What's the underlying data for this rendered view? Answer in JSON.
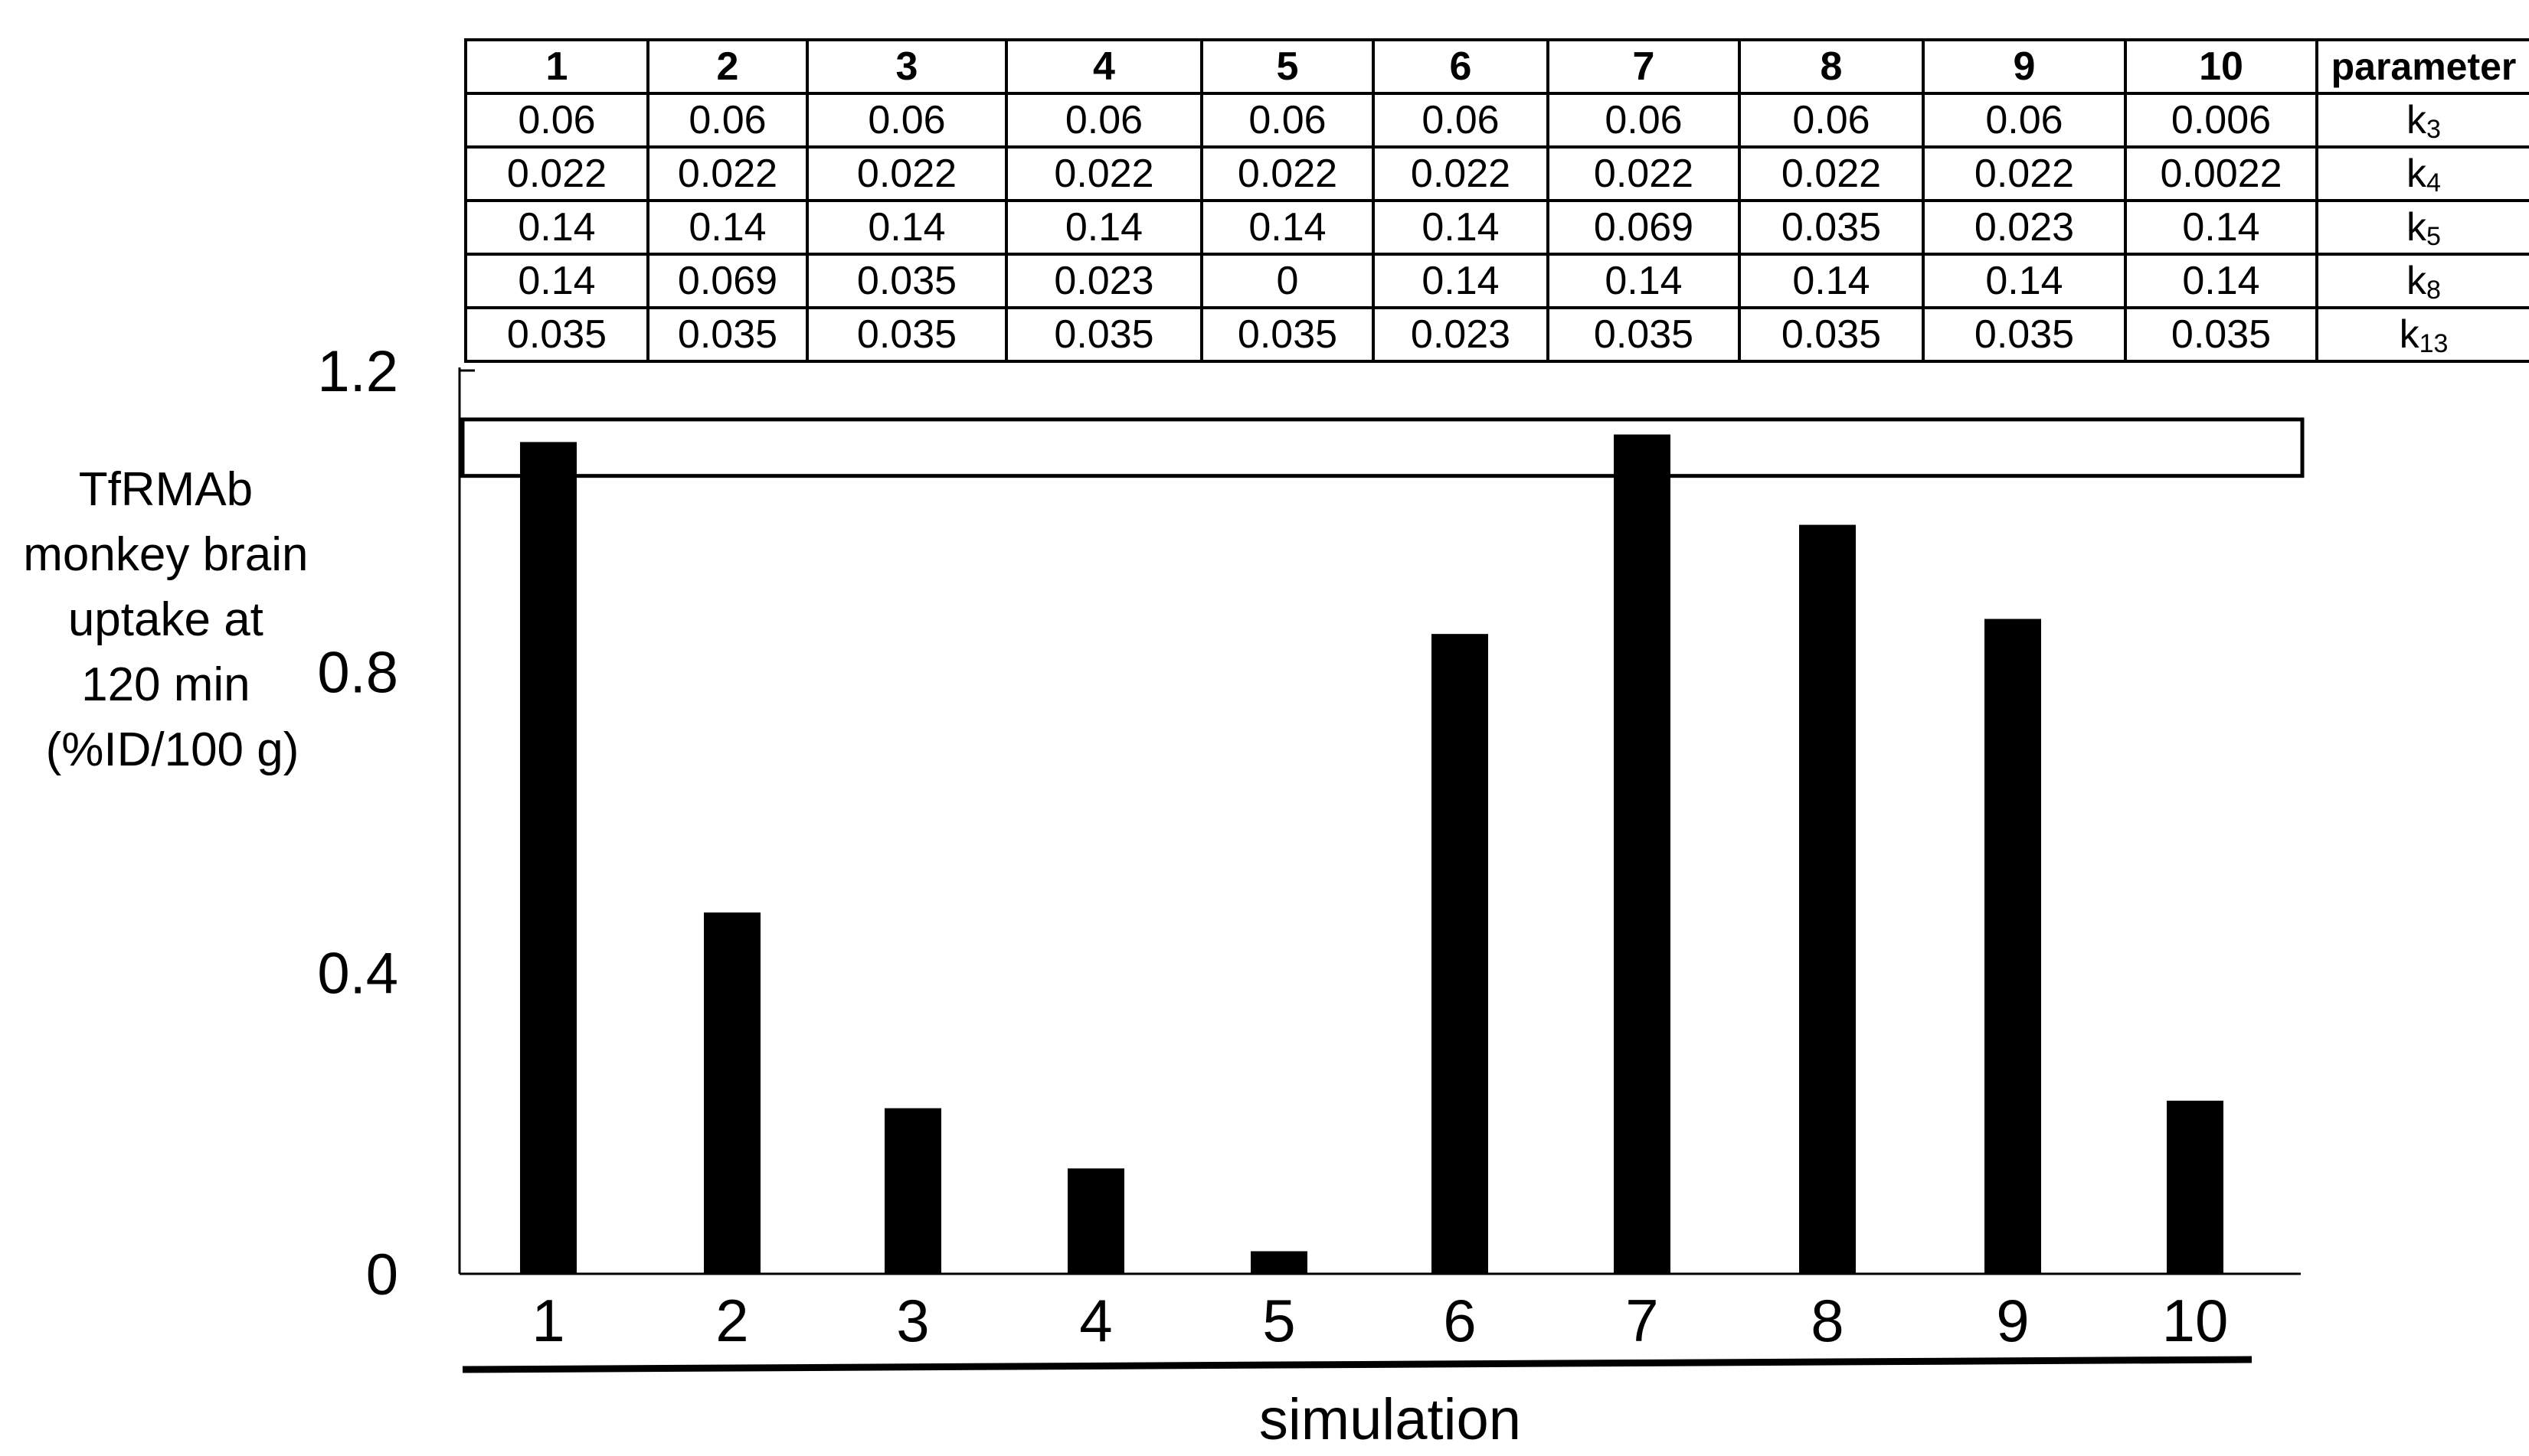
{
  "chart_data": {
    "type": "bar",
    "categories": [
      "1",
      "2",
      "3",
      "4",
      "5",
      "6",
      "7",
      "8",
      "9",
      "10"
    ],
    "values": [
      1.105,
      0.48,
      0.22,
      0.14,
      0.03,
      0.85,
      1.115,
      0.995,
      0.87,
      0.23
    ],
    "xlabel": "simulation",
    "ylabel": [
      "TfRMAb",
      "monkey brain",
      "uptake at",
      "120 min",
      "(%ID/100 g)"
    ],
    "ylim": [
      0,
      1.2
    ],
    "yticks": [
      "0",
      "0.4",
      "0.8",
      "1.2"
    ],
    "ytick_values": [
      0,
      0.4,
      0.8,
      1.2
    ],
    "highlight_band": [
      1.06,
      1.135
    ],
    "bar_color": "#000000",
    "grid": false,
    "legend": "none"
  },
  "table": {
    "header": [
      "1",
      "2",
      "3",
      "4",
      "5",
      "6",
      "7",
      "8",
      "9",
      "10"
    ],
    "header_param": "parameter",
    "rows": [
      {
        "values": [
          "0.06",
          "0.06",
          "0.06",
          "0.06",
          "0.06",
          "0.06",
          "0.06",
          "0.06",
          "0.06",
          "0.006"
        ],
        "param": "k",
        "sub": "3"
      },
      {
        "values": [
          "0.022",
          "0.022",
          "0.022",
          "0.022",
          "0.022",
          "0.022",
          "0.022",
          "0.022",
          "0.022",
          "0.0022"
        ],
        "param": "k",
        "sub": "4"
      },
      {
        "values": [
          "0.14",
          "0.14",
          "0.14",
          "0.14",
          "0.14",
          "0.14",
          "0.069",
          "0.035",
          "0.023",
          "0.14"
        ],
        "param": "k",
        "sub": "5"
      },
      {
        "values": [
          "0.14",
          "0.069",
          "0.035",
          "0.023",
          "0",
          "0.14",
          "0.14",
          "0.14",
          "0.14",
          "0.14"
        ],
        "param": "k",
        "sub": "8"
      },
      {
        "values": [
          "0.035",
          "0.035",
          "0.035",
          "0.035",
          "0.035",
          "0.023",
          "0.035",
          "0.035",
          "0.035",
          "0.035"
        ],
        "param": "k",
        "sub": "13"
      }
    ]
  }
}
